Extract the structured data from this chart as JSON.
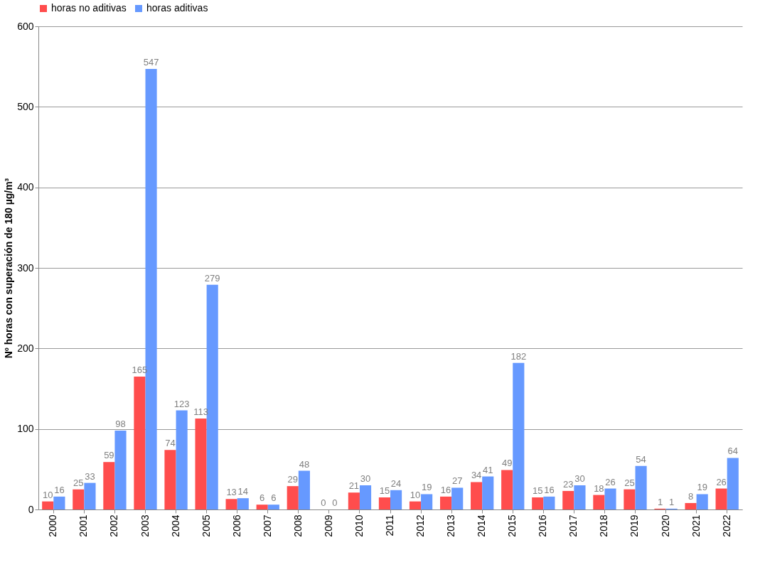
{
  "chart_data": {
    "type": "bar",
    "ylabel": "Nº  horas con superación de 180 µg/m³",
    "categories": [
      "2000",
      "2001",
      "2002",
      "2003",
      "2004",
      "2005",
      "2006",
      "2007",
      "2008",
      "2009",
      "2010",
      "2011",
      "2012",
      "2013",
      "2014",
      "2015",
      "2016",
      "2017",
      "2018",
      "2019",
      "2020",
      "2021",
      "2022"
    ],
    "series": [
      {
        "name": "horas no aditivas",
        "color": "#ff4d4d",
        "values": [
          10,
          25,
          59,
          165,
          74,
          113,
          13,
          6,
          29,
          0,
          21,
          15,
          10,
          16,
          34,
          49,
          15,
          23,
          18,
          25,
          1,
          8,
          26
        ]
      },
      {
        "name": "horas aditivas",
        "color": "#6699ff",
        "values": [
          16,
          33,
          98,
          547,
          123,
          279,
          14,
          6,
          48,
          0,
          30,
          24,
          19,
          27,
          41,
          182,
          16,
          30,
          26,
          54,
          1,
          19,
          64
        ]
      }
    ],
    "ylim": [
      0,
      600
    ],
    "yticks": [
      0,
      100,
      200,
      300,
      400,
      500,
      600
    ],
    "grid": "y",
    "legend": "top",
    "data_labels": true
  }
}
